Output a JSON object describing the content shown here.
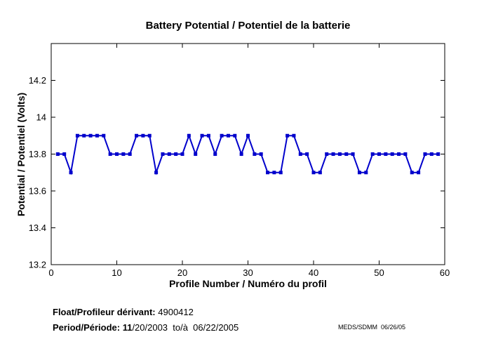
{
  "title": "Battery Potential / Potentiel de la batterie",
  "footer": {
    "float_label": "Float/Profileur dérivant: ",
    "float_value": "4900412",
    "period_label": "Period/Période: 11",
    "period_value": "/20/2003  to/à  06/22/2005",
    "credit": "MEDS/SDMM  06/26/05"
  },
  "chart_data": {
    "type": "line",
    "title": "Battery Potential / Potentiel de la batterie",
    "xlabel": "Profile Number / Numéro du profil",
    "ylabel": "Potential / Potentiel (Volts)",
    "xlim": [
      0,
      60
    ],
    "ylim": [
      13.2,
      14.4
    ],
    "xticks": [
      0,
      10,
      20,
      30,
      40,
      50,
      60
    ],
    "xtick_labels": [
      "0",
      "10",
      "20",
      "30",
      "40",
      "50",
      "60"
    ],
    "yticks": [
      13.2,
      13.4,
      13.6,
      13.8,
      14.0,
      14.2
    ],
    "ytick_labels": [
      "13.2",
      "13.4",
      "13.6",
      "13.8",
      "14",
      "14.2"
    ],
    "grid": false,
    "legend_position": "none",
    "line_color": "#0000CC",
    "marker": "square",
    "x": [
      1,
      2,
      3,
      4,
      5,
      6,
      7,
      8,
      9,
      10,
      11,
      12,
      13,
      14,
      15,
      16,
      17,
      18,
      19,
      20,
      21,
      22,
      23,
      24,
      25,
      26,
      27,
      28,
      29,
      30,
      31,
      32,
      33,
      34,
      35,
      36,
      37,
      38,
      39,
      40,
      41,
      42,
      43,
      44,
      45,
      46,
      47,
      48,
      49,
      50,
      51,
      52,
      53,
      54,
      55,
      56,
      57,
      58,
      59
    ],
    "y": [
      13.8,
      13.8,
      13.7,
      13.9,
      13.9,
      13.9,
      13.9,
      13.9,
      13.8,
      13.8,
      13.8,
      13.8,
      13.9,
      13.9,
      13.9,
      13.7,
      13.8,
      13.8,
      13.8,
      13.8,
      13.9,
      13.8,
      13.9,
      13.9,
      13.8,
      13.9,
      13.9,
      13.9,
      13.8,
      13.9,
      13.8,
      13.8,
      13.7,
      13.7,
      13.7,
      13.9,
      13.9,
      13.8,
      13.8,
      13.7,
      13.7,
      13.8,
      13.8,
      13.8,
      13.8,
      13.8,
      13.7,
      13.7,
      13.8,
      13.8,
      13.8,
      13.8,
      13.8,
      13.8,
      13.7,
      13.7,
      13.8,
      13.8,
      13.8
    ]
  }
}
